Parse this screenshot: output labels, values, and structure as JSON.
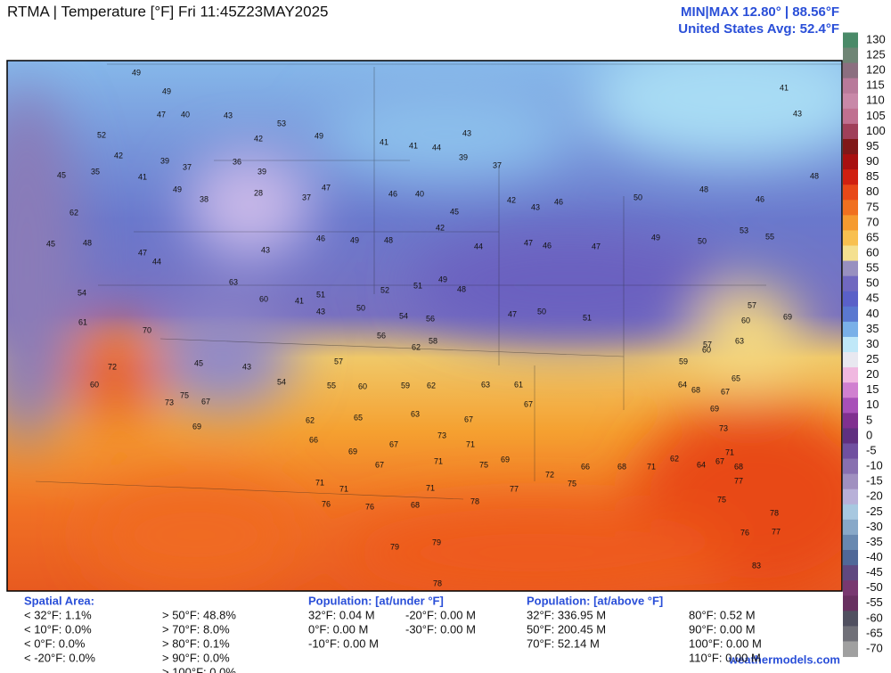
{
  "header": {
    "title": "RTMA | Temperature [°F]  Fri 11:45Z23MAY2025",
    "minmax": "MIN|MAX 12.80° | 88.56°F",
    "average": "United States Avg: 52.4°F"
  },
  "colorbar": {
    "ticks": [
      130,
      125,
      120,
      115,
      110,
      105,
      100,
      95,
      90,
      85,
      80,
      75,
      70,
      65,
      60,
      55,
      50,
      45,
      40,
      35,
      30,
      25,
      20,
      15,
      10,
      5,
      0,
      -5,
      -10,
      -15,
      -20,
      -25,
      -30,
      -35,
      -40,
      -45,
      -50,
      -55,
      -60,
      -65,
      -70
    ],
    "colors": [
      "#4a8a68",
      "#6f8575",
      "#8c6f80",
      "#b87a9a",
      "#c888a8",
      "#c07090",
      "#a0405a",
      "#801818",
      "#a81010",
      "#d02010",
      "#e84818",
      "#f07020",
      "#f59a30",
      "#f8c050",
      "#f4e090",
      "#9890c0",
      "#7068c0",
      "#5a60c8",
      "#5a78d0",
      "#7ab0e8",
      "#c0e8f8",
      "#e8e8f0",
      "#f0b8e0",
      "#d080d0",
      "#a850b8",
      "#803090",
      "#603080",
      "#7050a0",
      "#8870b0",
      "#a090c0",
      "#b8b0d8",
      "#a8c8e0",
      "#88a8c8",
      "#6888b0",
      "#506898",
      "#604880",
      "#783870",
      "#683060",
      "#505060",
      "#707078",
      "#a0a0a0"
    ]
  },
  "stations": [
    49,
    49,
    47,
    40,
    43,
    53,
    49,
    41,
    41,
    44,
    43,
    39,
    37,
    52,
    42,
    39,
    37,
    36,
    39,
    42,
    45,
    35,
    41,
    49,
    38,
    28,
    37,
    47,
    40,
    46,
    45,
    42,
    43,
    46,
    50,
    48,
    46,
    48,
    41,
    43,
    62,
    45,
    48,
    47,
    44,
    43,
    46,
    49,
    48,
    42,
    44,
    47,
    46,
    47,
    49,
    50,
    53,
    55,
    54,
    63,
    60,
    41,
    43,
    51,
    50,
    52,
    51,
    49,
    48,
    54,
    56,
    56,
    62,
    58,
    47,
    50,
    51,
    57,
    60,
    69,
    61,
    70,
    72,
    73,
    75,
    67,
    69,
    60,
    45,
    43,
    54,
    57,
    55,
    60,
    59,
    62,
    63,
    61,
    67,
    63,
    67,
    62,
    65,
    66,
    67,
    73,
    71,
    69,
    75,
    71,
    67,
    71,
    71,
    71,
    68,
    76,
    76,
    78,
    77,
    69,
    72,
    75,
    66,
    68,
    71,
    62,
    64,
    67,
    69,
    73,
    71,
    68,
    77,
    75,
    78,
    77,
    76,
    83,
    79,
    78,
    79,
    64,
    67,
    68,
    65,
    63,
    57,
    59,
    60
  ],
  "footer": {
    "spatial_area": {
      "title": "Spatial Area:",
      "below": [
        "< 32°F: 1.1%",
        "< 10°F: 0.0%",
        "< 0°F: 0.0%",
        "< -20°F: 0.0%"
      ],
      "above": [
        "> 50°F: 48.8%",
        "> 70°F: 8.0%",
        "> 80°F: 0.1%",
        "> 90°F: 0.0%",
        "> 100°F: 0.0%"
      ]
    },
    "population_under": {
      "title": "Population: [at/under °F]",
      "col1": [
        "32°F: 0.04 M",
        "0°F: 0.00 M",
        "-10°F: 0.00 M"
      ],
      "col2": [
        "-20°F: 0.00 M",
        "-30°F: 0.00 M"
      ]
    },
    "population_above": {
      "title": "Population: [at/above °F]",
      "col1": [
        "32°F: 336.95 M",
        "50°F: 200.45 M",
        "70°F: 52.14 M"
      ],
      "col2": [
        "80°F: 0.52 M",
        "90°F: 0.00 M",
        "100°F: 0.00 M",
        "110°F: 0.00 M"
      ]
    },
    "source": "weathermodels.com"
  }
}
